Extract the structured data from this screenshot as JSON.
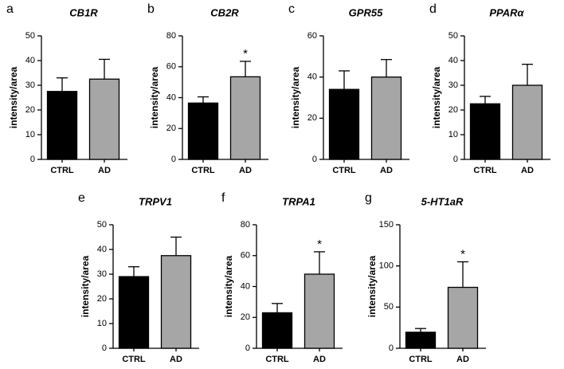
{
  "chart_data": [
    {
      "type": "bar",
      "panel": "a",
      "title": "CB1R",
      "ylabel": "intensity/area",
      "categories": [
        "CTRL",
        "AD"
      ],
      "values": [
        27.5,
        32.5
      ],
      "errors": [
        5.5,
        8
      ],
      "annotations": [
        null,
        null
      ],
      "colors": [
        "#000000",
        "#a6a6a6"
      ],
      "ylim": [
        0,
        50
      ],
      "yticks": [
        0,
        10,
        20,
        30,
        40,
        50
      ]
    },
    {
      "type": "bar",
      "panel": "b",
      "title": "CB2R",
      "ylabel": "intensity/area",
      "categories": [
        "CTRL",
        "AD"
      ],
      "values": [
        36.5,
        53.5
      ],
      "errors": [
        4,
        10
      ],
      "annotations": [
        null,
        "*"
      ],
      "colors": [
        "#000000",
        "#a6a6a6"
      ],
      "ylim": [
        0,
        80
      ],
      "yticks": [
        0,
        20,
        40,
        60,
        80
      ]
    },
    {
      "type": "bar",
      "panel": "c",
      "title": "GPR55",
      "ylabel": "intensity/area",
      "categories": [
        "CTRL",
        "AD"
      ],
      "values": [
        34,
        40
      ],
      "errors": [
        9,
        8.5
      ],
      "annotations": [
        null,
        null
      ],
      "colors": [
        "#000000",
        "#a6a6a6"
      ],
      "ylim": [
        0,
        60
      ],
      "yticks": [
        0,
        20,
        40,
        60
      ]
    },
    {
      "type": "bar",
      "panel": "d",
      "title": "PPARα",
      "ylabel": "intensity/area",
      "categories": [
        "CTRL",
        "AD"
      ],
      "values": [
        22.5,
        30
      ],
      "errors": [
        3,
        8.5
      ],
      "annotations": [
        null,
        null
      ],
      "colors": [
        "#000000",
        "#a6a6a6"
      ],
      "ylim": [
        0,
        50
      ],
      "yticks": [
        0,
        10,
        20,
        30,
        40,
        50
      ]
    },
    {
      "type": "bar",
      "panel": "e",
      "title": "TRPV1",
      "ylabel": "intensity/area",
      "categories": [
        "CTRL",
        "AD"
      ],
      "values": [
        29,
        37.5
      ],
      "errors": [
        4,
        7.5
      ],
      "annotations": [
        null,
        null
      ],
      "colors": [
        "#000000",
        "#a6a6a6"
      ],
      "ylim": [
        0,
        50
      ],
      "yticks": [
        0,
        10,
        20,
        30,
        40,
        50
      ]
    },
    {
      "type": "bar",
      "panel": "f",
      "title": "TRPA1",
      "ylabel": "intensity/area",
      "categories": [
        "CTRL",
        "AD"
      ],
      "values": [
        23,
        48
      ],
      "errors": [
        6,
        14.5
      ],
      "annotations": [
        null,
        "*"
      ],
      "colors": [
        "#000000",
        "#a6a6a6"
      ],
      "ylim": [
        0,
        80
      ],
      "yticks": [
        0,
        20,
        40,
        60,
        80
      ]
    },
    {
      "type": "bar",
      "panel": "g",
      "title": "5-HT1aR",
      "ylabel": "intensity/area",
      "categories": [
        "CTRL",
        "AD"
      ],
      "values": [
        19.5,
        74
      ],
      "errors": [
        4.5,
        31
      ],
      "annotations": [
        null,
        "*"
      ],
      "colors": [
        "#000000",
        "#a6a6a6"
      ],
      "ylim": [
        0,
        150
      ],
      "yticks": [
        0,
        50,
        100,
        150
      ]
    }
  ]
}
